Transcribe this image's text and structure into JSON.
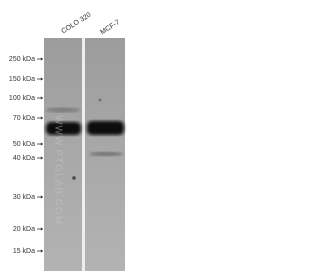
{
  "lanes": [
    "COLO 320",
    "MCF-7"
  ],
  "markers": [
    "250 kDa",
    "150 kDa",
    "100 kDa",
    "70 kDa",
    "50 kDa",
    "40 kDa",
    "30 kDa",
    "20 kDa",
    "15 kDa"
  ],
  "watermark": "WWW.PTGLAB.COM"
}
